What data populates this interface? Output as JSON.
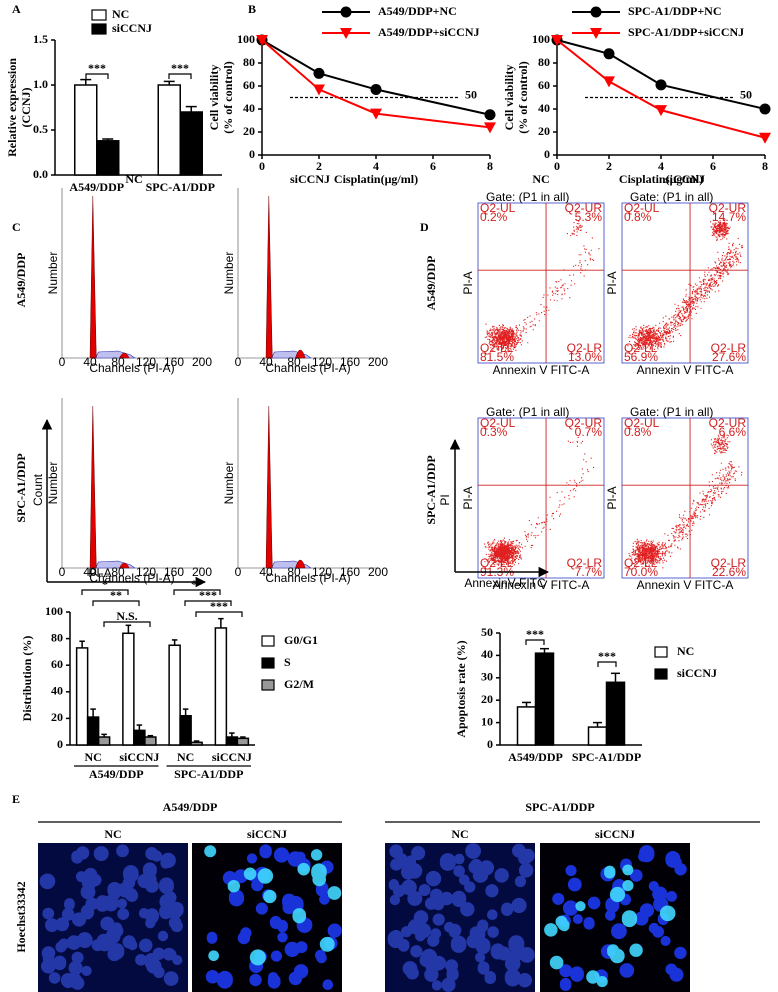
{
  "panel_labels": [
    "A",
    "B",
    "C",
    "D",
    "E"
  ],
  "chart_data": [
    {
      "type": "bar",
      "ylabel": [
        "Relative expression",
        "(CCNJ)"
      ],
      "categories": [
        "A549/DDP",
        "SPC-A1/DDP"
      ],
      "series": [
        {
          "name": "NC",
          "color": "#ffffff",
          "values": [
            1.0,
            1.0
          ],
          "errors": [
            0.06,
            0.04
          ]
        },
        {
          "name": "siCCNJ",
          "color": "#000000",
          "values": [
            0.38,
            0.7
          ],
          "errors": [
            0.02,
            0.06
          ]
        }
      ],
      "ylim": [
        0,
        1.5
      ],
      "yticks": [
        {
          "value": 0,
          "label": "0.0"
        },
        0.5,
        {
          "value": 1,
          "label": "1.0"
        },
        1.5
      ],
      "significance": [
        "***",
        "***"
      ],
      "legend": "top"
    },
    {
      "type": "line",
      "ylabel": [
        "Cell viability",
        "(% of control)"
      ],
      "xlabel": "Cisplatin(μg/ml)",
      "x": [
        0,
        2,
        4,
        8
      ],
      "xlim": [
        0,
        8
      ],
      "xticks": [
        0,
        2,
        4,
        6,
        8
      ],
      "ylim": [
        0,
        100
      ],
      "yticks": [
        0,
        20,
        40,
        60,
        80,
        100
      ],
      "reference_line": 50,
      "series": [
        {
          "name": "A549/DDP+NC",
          "color": "#000000",
          "marker": "circle",
          "values": [
            100,
            71,
            57,
            35
          ]
        },
        {
          "name": "A549/DDP+siCCNJ",
          "color": "#ff0000",
          "marker": "triangle",
          "values": [
            100,
            57,
            36,
            24
          ]
        }
      ],
      "legend": "top"
    },
    {
      "type": "line",
      "ylabel": [
        "Cell viability",
        "(% of control)"
      ],
      "xlabel": "Cisplatin(μg/ml)",
      "x": [
        0,
        2,
        4,
        8
      ],
      "xlim": [
        0,
        8
      ],
      "xticks": [
        0,
        2,
        4,
        6,
        8
      ],
      "ylim": [
        0,
        100
      ],
      "yticks": [
        0,
        20,
        40,
        60,
        80,
        100
      ],
      "reference_line": 50,
      "series": [
        {
          "name": "SPC-A1/DDP+NC",
          "color": "#000000",
          "marker": "circle",
          "values": [
            100,
            88,
            61,
            40
          ]
        },
        {
          "name": "SPC-A1/DDP+siCCNJ",
          "color": "#ff0000",
          "marker": "triangle",
          "values": [
            100,
            64,
            39,
            15
          ]
        }
      ],
      "legend": "top"
    },
    {
      "type": "bar",
      "ylabel": "Distribution (%)",
      "categories": [
        "NC",
        "siCCNJ",
        "NC",
        "siCCNJ"
      ],
      "groups": [
        "A549/DDP",
        "SPC-A1/DDP"
      ],
      "series": [
        {
          "name": "G0/G1",
          "color": "#ffffff",
          "values": [
            73,
            84,
            75,
            88
          ],
          "errors": [
            5,
            6,
            4,
            7
          ]
        },
        {
          "name": "S",
          "color": "#000000",
          "values": [
            21,
            11,
            22,
            6
          ],
          "errors": [
            6,
            4,
            5,
            3
          ]
        },
        {
          "name": "G2/M",
          "color": "#999999",
          "values": [
            6,
            6,
            2,
            5
          ],
          "errors": [
            2,
            1,
            1,
            1
          ]
        }
      ],
      "ylim": [
        0,
        100
      ],
      "yticks": [
        0,
        20,
        40,
        60,
        80,
        100
      ],
      "significance": [
        "*",
        "**",
        "N.S.",
        "**",
        "***",
        "***"
      ],
      "legend": "right"
    },
    {
      "type": "bar",
      "ylabel": "Apoptosis rate (%)",
      "categories": [
        "A549/DDP",
        "SPC-A1/DDP"
      ],
      "series": [
        {
          "name": "NC",
          "color": "#ffffff",
          "values": [
            17,
            8
          ],
          "errors": [
            2,
            2
          ]
        },
        {
          "name": "siCCNJ",
          "color": "#000000",
          "values": [
            41,
            28
          ],
          "errors": [
            2,
            4
          ]
        }
      ],
      "ylim": [
        0,
        50
      ],
      "yticks": [
        0,
        10,
        20,
        30,
        40,
        50
      ],
      "significance": [
        "***",
        "***"
      ],
      "legend": "right"
    }
  ],
  "cell_cycle": {
    "columns": [
      "NC",
      "siCCNJ"
    ],
    "rows": [
      "A549/DDP",
      "SPC-A1/DDP"
    ],
    "x_axis": "Channels (PI-A)",
    "y_axis": "Number",
    "channel_ticks": [
      0,
      40,
      80,
      120,
      160,
      200
    ],
    "arrow_y": "Count",
    "arrow_x": "PI-A"
  },
  "flow_cytometry": {
    "columns": [
      "NC",
      "siCCNJ"
    ],
    "rows": [
      "A549/DDP",
      "SPC-A1/DDP"
    ],
    "gate": "Gate: (P1 in all)",
    "x_axis": "Annexin V FITC-A",
    "y_axis": "PI-A",
    "arrow_y": "PI",
    "arrow_x": "AnnexinV-FITC",
    "quadrant_names": [
      "Q2-UL",
      "Q2-UR",
      "Q2-LR",
      "Q2-LL"
    ],
    "plots": [
      [
        "0.2%",
        "5.3%",
        "13.0%",
        "81.5%"
      ],
      [
        "0.8%",
        "14.7%",
        "27.6%",
        "56.9%"
      ],
      [
        "0.3%",
        "0.7%",
        "7.7%",
        "91.3%"
      ],
      [
        "0.8%",
        "6.6%",
        "22.6%",
        "70.0%"
      ]
    ]
  },
  "microscopy": {
    "groups": [
      "A549/DDP",
      "SPC-A1/DDP"
    ],
    "columns": [
      "NC",
      "siCCNJ",
      "NC",
      "siCCNJ"
    ],
    "stain": "Hoechst33342"
  }
}
